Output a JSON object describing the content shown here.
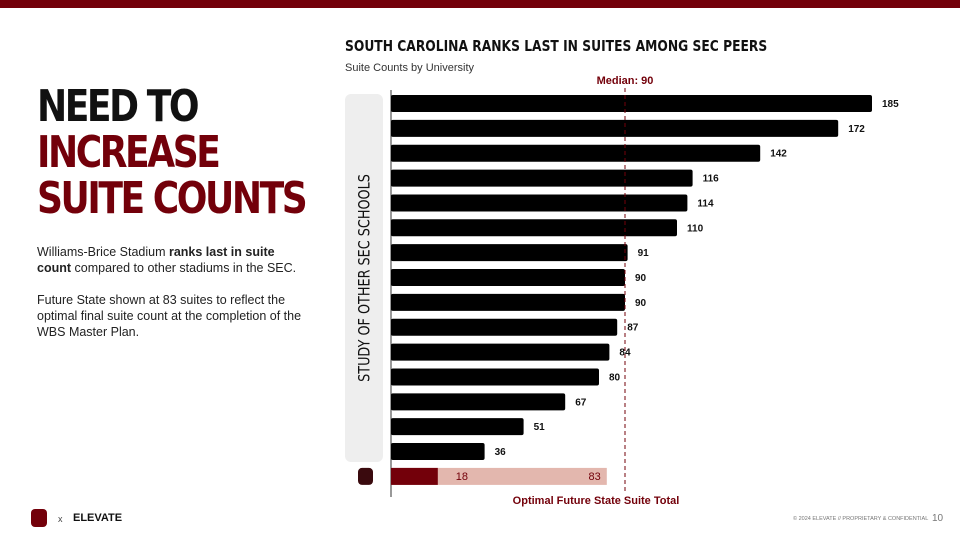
{
  "colors": {
    "brand": "#73000a",
    "bar": "#000000",
    "future": "#e3b7ae"
  },
  "headline": {
    "line1": "NEED TO",
    "line2": "INCREASE",
    "line3": "SUITE COUNTS"
  },
  "body": {
    "p1_a": "Williams-Brice Stadium ",
    "p1_bold": "ranks last in suite count",
    "p1_b": " compared to other stadiums in the SEC.",
    "p2": "Future State shown at 83 suites to reflect the optimal final suite count at the completion of the WBS Master Plan."
  },
  "chart_data": {
    "type": "bar",
    "orientation": "horizontal",
    "title": "SOUTH CAROLINA RANKS LAST IN SUITES AMONG SEC PEERS",
    "subtitle": "Suite Counts by University",
    "category_group_label": "STUDY OF OTHER SEC SCHOOLS",
    "values": [
      185,
      172,
      142,
      116,
      114,
      110,
      91,
      90,
      90,
      87,
      84,
      80,
      67,
      51,
      36
    ],
    "south_carolina": {
      "current": 18,
      "future": 83,
      "icon": "south-carolina-gamecock-logo"
    },
    "median": {
      "value": 90,
      "label": "Median: 90"
    },
    "future_label": "Optimal Future State Suite Total",
    "xlim": [
      0,
      185
    ]
  },
  "footer": {
    "x": "x",
    "brand": "ELEVATE",
    "copyright": "© 2024 ELEVATE // PROPRIETARY & CONFIDENTIAL",
    "page": "10"
  }
}
